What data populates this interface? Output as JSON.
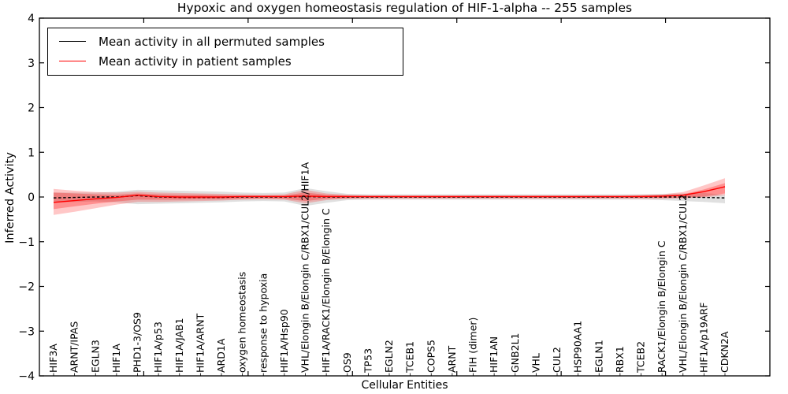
{
  "figure": {
    "title": "Hypoxic and oxygen homeostasis regulation of HIF-1-alpha -- 255 samples",
    "xlabel": "Cellular Entities",
    "ylabel": "Inferred Activity",
    "legend": {
      "items": [
        {
          "label": "Mean activity in all permuted samples",
          "color": "#000000"
        },
        {
          "label": "Mean activity in patient samples",
          "color": "#ff0000"
        }
      ]
    }
  },
  "chart_data": {
    "type": "line",
    "title": "Hypoxic and oxygen homeostasis regulation of HIF-1-alpha -- 255 samples",
    "xlabel": "Cellular Entities",
    "ylabel": "Inferred Activity",
    "ylim": [
      -4,
      4
    ],
    "yticks": {
      "values": [
        4,
        3,
        2,
        1,
        0,
        -1,
        -2,
        -3,
        -4
      ],
      "labels": [
        "4",
        "3",
        "2",
        "1",
        "0",
        "−1",
        "−2",
        "−3",
        "−4"
      ]
    },
    "grid": false,
    "legend_position": "upper left",
    "categories": [
      "HIF3A",
      "ARNT/IPAS",
      "EGLN3",
      "HIF1A",
      "PHD1-3/OS9",
      "HIF1A/p53",
      "HIF1A/JAB1",
      "HIF1A/ARNT",
      "ARD1A",
      "oxygen homeostasis",
      "response to hypoxia",
      "HIF1A/Hsp90",
      "VHL/Elongin B/Elongin C/RBX1/CUL2/HIF1A",
      "HIF1A/RACK1/Elongin B/Elongin C",
      "OS9",
      "TP53",
      "EGLN2",
      "TCEB1",
      "COPS5",
      "ARNT",
      "FIH (dimer)",
      "HIF1AN",
      "GNB2L1",
      "VHL",
      "CUL2",
      "HSP90AA1",
      "EGLN1",
      "RBX1",
      "TCEB2",
      "RACK1/Elongin B/Elongin C",
      "VHL/Elongin B/Elongin C/RBX1/CUL2",
      "HIF1A/p19ARF",
      "CDKN2A"
    ],
    "series": [
      {
        "name": "Mean activity in all permuted samples",
        "color": "#000000",
        "style": "dashed",
        "values": [
          -0.02,
          -0.01,
          0,
          0,
          0.03,
          0,
          -0.01,
          -0.01,
          -0.01,
          0,
          0,
          0,
          0.01,
          0,
          0,
          0,
          0,
          0,
          0,
          0,
          0,
          0,
          0,
          0,
          0,
          0,
          0,
          0,
          0,
          0,
          0,
          -0.01,
          -0.02
        ]
      },
      {
        "name": "Mean activity in patient samples",
        "color": "#ff0000",
        "style": "solid",
        "values": [
          -0.12,
          -0.08,
          -0.04,
          -0.01,
          0.04,
          0.01,
          0,
          0,
          0,
          0.01,
          0.01,
          0.01,
          0.02,
          0.01,
          0.01,
          0.01,
          0.01,
          0.01,
          0.01,
          0.01,
          0.01,
          0.01,
          0.01,
          0.01,
          0.01,
          0.01,
          0.01,
          0.01,
          0.01,
          0.02,
          0.04,
          0.12,
          0.23
        ]
      }
    ],
    "bands": [
      {
        "name": "permuted-samples-range",
        "color": "rgba(0,0,0,0.12)",
        "upper": [
          0.1,
          0.1,
          0.1,
          0.12,
          0.16,
          0.15,
          0.14,
          0.13,
          0.12,
          0.1,
          0.09,
          0.1,
          0.2,
          0.13,
          0.07,
          0.06,
          0.06,
          0.06,
          0.06,
          0.06,
          0.06,
          0.06,
          0.06,
          0.06,
          0.06,
          0.06,
          0.06,
          0.06,
          0.06,
          0.07,
          0.08,
          0.09,
          0.05
        ],
        "lower": [
          -0.12,
          -0.11,
          -0.1,
          -0.12,
          -0.16,
          -0.15,
          -0.14,
          -0.13,
          -0.12,
          -0.1,
          -0.09,
          -0.1,
          -0.2,
          -0.13,
          -0.07,
          -0.06,
          -0.06,
          -0.06,
          -0.06,
          -0.06,
          -0.06,
          -0.06,
          -0.06,
          -0.06,
          -0.06,
          -0.06,
          -0.06,
          -0.06,
          -0.06,
          -0.07,
          -0.09,
          -0.11,
          -0.14
        ]
      },
      {
        "name": "patient-samples-range-outer",
        "color": "rgba(255,0,0,0.22)",
        "upper": [
          0.18,
          0.14,
          0.11,
          0.1,
          0.12,
          0.1,
          0.09,
          0.08,
          0.07,
          0.06,
          0.05,
          0.06,
          0.16,
          0.08,
          0.05,
          0.04,
          0.04,
          0.04,
          0.04,
          0.04,
          0.04,
          0.04,
          0.04,
          0.04,
          0.04,
          0.04,
          0.04,
          0.04,
          0.05,
          0.06,
          0.11,
          0.26,
          0.42
        ],
        "lower": [
          -0.4,
          -0.33,
          -0.25,
          -0.17,
          -0.11,
          -0.11,
          -0.1,
          -0.09,
          -0.08,
          -0.06,
          -0.05,
          -0.06,
          -0.14,
          -0.07,
          -0.04,
          -0.04,
          -0.04,
          -0.04,
          -0.04,
          -0.04,
          -0.04,
          -0.04,
          -0.04,
          -0.04,
          -0.04,
          -0.04,
          -0.04,
          -0.04,
          -0.04,
          -0.04,
          -0.03,
          -0.01,
          0.04
        ]
      },
      {
        "name": "patient-samples-range-inner",
        "color": "rgba(255,0,0,0.28)",
        "upper": [
          0.1,
          0.08,
          0.06,
          0.05,
          0.08,
          0.06,
          0.05,
          0.05,
          0.04,
          0.03,
          0.03,
          0.03,
          0.1,
          0.05,
          0.03,
          0.02,
          0.02,
          0.02,
          0.02,
          0.02,
          0.02,
          0.02,
          0.02,
          0.02,
          0.02,
          0.02,
          0.02,
          0.02,
          0.03,
          0.03,
          0.06,
          0.17,
          0.31
        ],
        "lower": [
          -0.27,
          -0.21,
          -0.15,
          -0.1,
          -0.06,
          -0.06,
          -0.06,
          -0.05,
          -0.05,
          -0.04,
          -0.03,
          -0.04,
          -0.09,
          -0.04,
          -0.03,
          -0.02,
          -0.02,
          -0.02,
          -0.02,
          -0.02,
          -0.02,
          -0.02,
          -0.02,
          -0.02,
          -0.02,
          -0.02,
          -0.02,
          -0.02,
          -0.02,
          -0.02,
          -0.01,
          0.01,
          0.08
        ]
      }
    ]
  }
}
